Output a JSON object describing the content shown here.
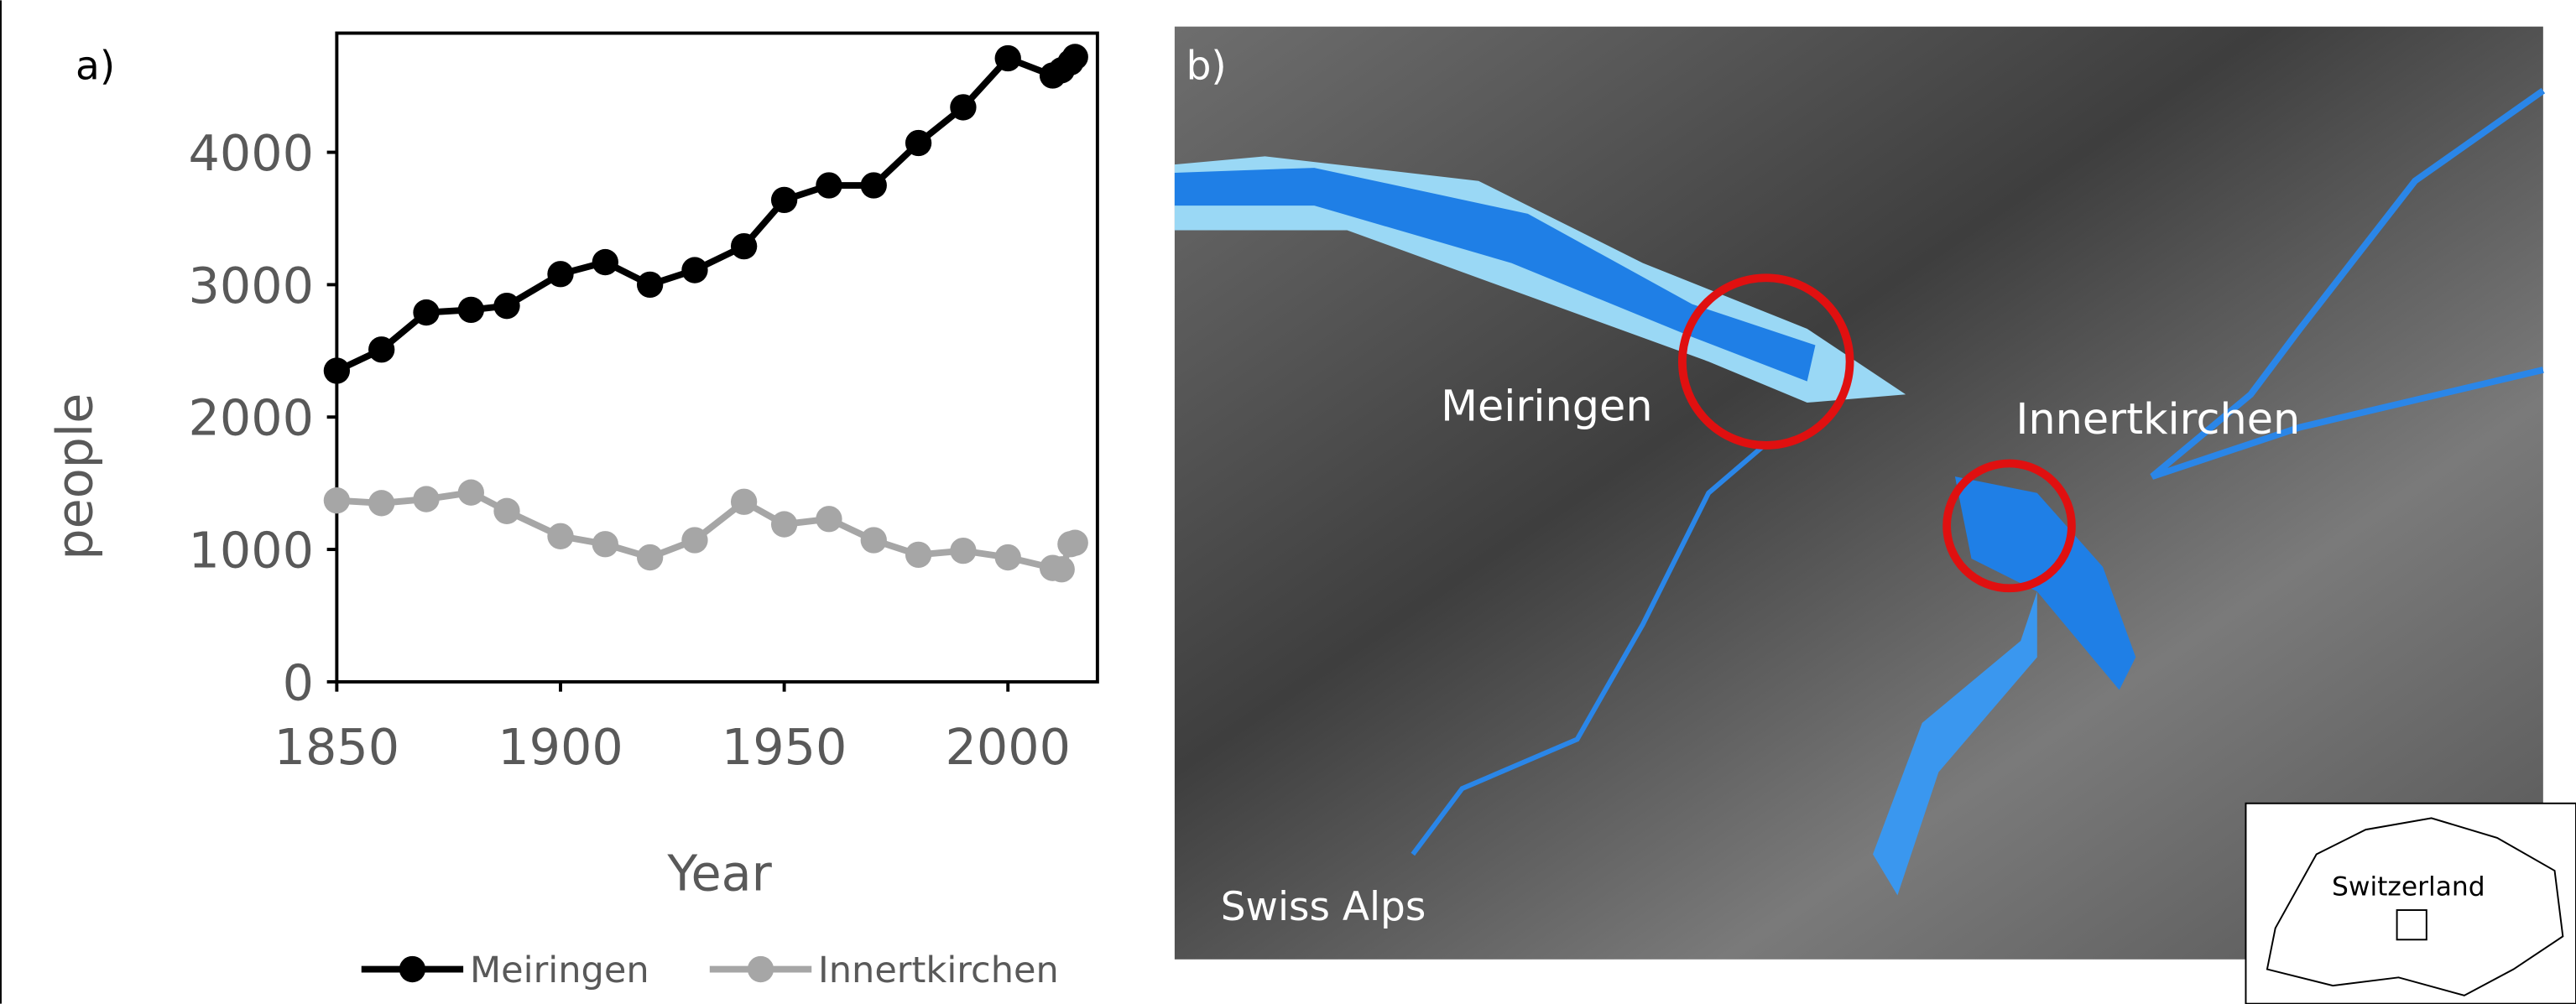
{
  "chart_data": {
    "type": "line",
    "panel_label": "a)",
    "x_label": "Year",
    "y_label": "people",
    "x": [
      1850,
      1860,
      1870,
      1880,
      1888,
      1900,
      1910,
      1920,
      1930,
      1941,
      1950,
      1960,
      1970,
      1980,
      1990,
      2000,
      2010,
      2012,
      2014,
      2015
    ],
    "series": [
      {
        "name": "Meiringen",
        "color": "#000000",
        "values": [
          2350,
          2510,
          2790,
          2810,
          2840,
          3080,
          3170,
          3000,
          3110,
          3290,
          3640,
          3750,
          3750,
          4070,
          4340,
          4710,
          4580,
          4620,
          4680,
          4720
        ]
      },
      {
        "name": "Innertkirchen",
        "color": "#a6a6a6",
        "values": [
          1370,
          1350,
          1380,
          1430,
          1290,
          1100,
          1040,
          940,
          1070,
          1360,
          1190,
          1230,
          1070,
          960,
          990,
          940,
          860,
          850,
          1040,
          1050
        ]
      }
    ],
    "xlim": [
      1850,
      2020
    ],
    "ylim": [
      0,
      4900
    ],
    "xticks": [
      1850,
      1900,
      1950,
      2000
    ],
    "yticks": [
      0,
      1000,
      2000,
      3000,
      4000
    ]
  },
  "map": {
    "panel_label": "b)",
    "labels": [
      "Meiringen",
      "Innertkirchen",
      "Swiss Alps"
    ],
    "inset_label": "Switzerland"
  }
}
